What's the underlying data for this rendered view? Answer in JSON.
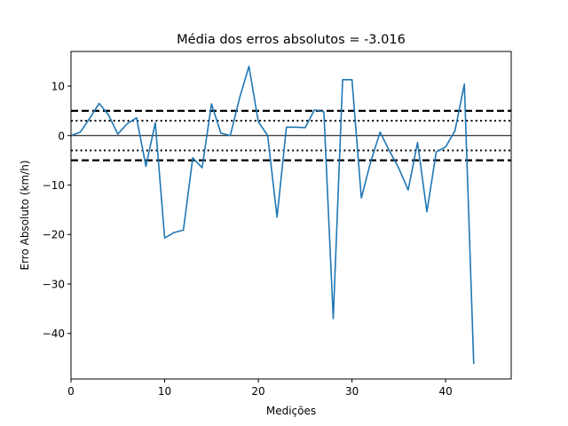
{
  "chart_data": {
    "type": "line",
    "title": "Média dos erros absolutos =  -3.016",
    "xlabel": "Medições",
    "ylabel": "Erro Absoluto (km/h)",
    "xlim": [
      0,
      47
    ],
    "ylim": [
      -49.2,
      17
    ],
    "x_ticks": [
      0,
      10,
      20,
      30,
      40
    ],
    "y_ticks": [
      10,
      0,
      -10,
      -20,
      -30,
      -40
    ],
    "x_tick_labels": [
      "0",
      "10",
      "20",
      "30",
      "40"
    ],
    "y_tick_labels": [
      "10",
      "0",
      "−10",
      "−20",
      "−30",
      "−40"
    ],
    "grid": false,
    "reference_lines": [
      {
        "y": 0,
        "style": "solid"
      },
      {
        "y": 3,
        "style": "dotted"
      },
      {
        "y": -3,
        "style": "dotted"
      },
      {
        "y": 5,
        "style": "dashed"
      },
      {
        "y": -5,
        "style": "dashed"
      }
    ],
    "series": [
      {
        "color": "#1f77b4",
        "x": [
          0,
          1,
          2,
          3,
          4,
          5,
          6,
          7,
          8,
          9,
          10,
          11,
          12,
          13,
          14,
          15,
          16,
          17,
          18,
          19,
          20,
          21,
          22,
          23,
          24,
          25,
          26,
          27,
          28,
          29,
          30,
          31,
          32,
          33,
          34,
          35,
          36,
          37,
          38,
          39,
          40,
          41,
          42,
          43
        ],
        "values": [
          0.0,
          0.7,
          3.5,
          6.5,
          4.2,
          0.3,
          2.4,
          3.6,
          -6.2,
          2.6,
          -20.7,
          -19.6,
          -19.1,
          -4.5,
          -6.5,
          6.4,
          0.5,
          0.0,
          7.6,
          14.0,
          2.8,
          0.0,
          -16.5,
          1.7,
          1.7,
          1.6,
          5.2,
          4.8,
          -37.0,
          11.3,
          11.3,
          -12.6,
          -5.3,
          0.7,
          -3.1,
          -6.6,
          -11.0,
          -1.4,
          -15.4,
          -3.3,
          -2.3,
          1.0,
          10.4,
          -46.2
        ]
      }
    ]
  }
}
